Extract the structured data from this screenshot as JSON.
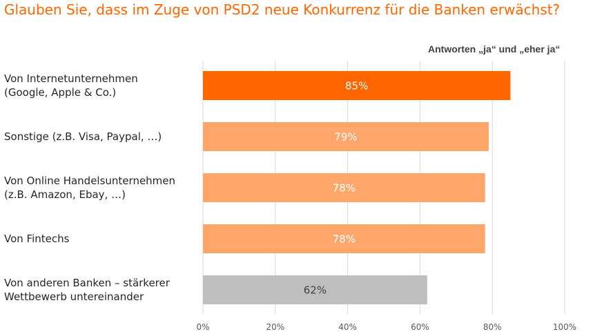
{
  "chart_data": {
    "type": "bar",
    "orientation": "horizontal",
    "title": "Glauben Sie, dass im Zuge von PSD2 neue Konkurrenz für die Banken erwächst?",
    "subtitle": "Antworten „ja“ und „eher ja“",
    "categories": [
      [
        "Von Internetunternehmen",
        "(Google, Apple & Co.)"
      ],
      [
        "Sonstige (z.B. Visa, Paypal, …)"
      ],
      [
        "Von Online Handelsunternehmen",
        "(z.B. Amazon, Ebay, …)"
      ],
      [
        "Von Fintechs"
      ],
      [
        "Von anderen Banken – stärkerer",
        "Wettbewerb untereinander"
      ]
    ],
    "values": [
      85,
      79,
      78,
      78,
      62
    ],
    "value_labels": [
      "85%",
      "79%",
      "78%",
      "78%",
      "62%"
    ],
    "bar_colors": [
      "#ff6600",
      "#ffa76b",
      "#ffa76b",
      "#ffa76b",
      "#bfbfbf"
    ],
    "value_label_colors": [
      "#ffffff",
      "#ffffff",
      "#ffffff",
      "#ffffff",
      "#404040"
    ],
    "xlim": [
      0,
      100
    ],
    "xticks": [
      0,
      20,
      40,
      60,
      80,
      100
    ],
    "xtick_labels": [
      "0%",
      "20%",
      "40%",
      "60%",
      "80%",
      "100%"
    ],
    "grid": true,
    "legend": "none"
  }
}
